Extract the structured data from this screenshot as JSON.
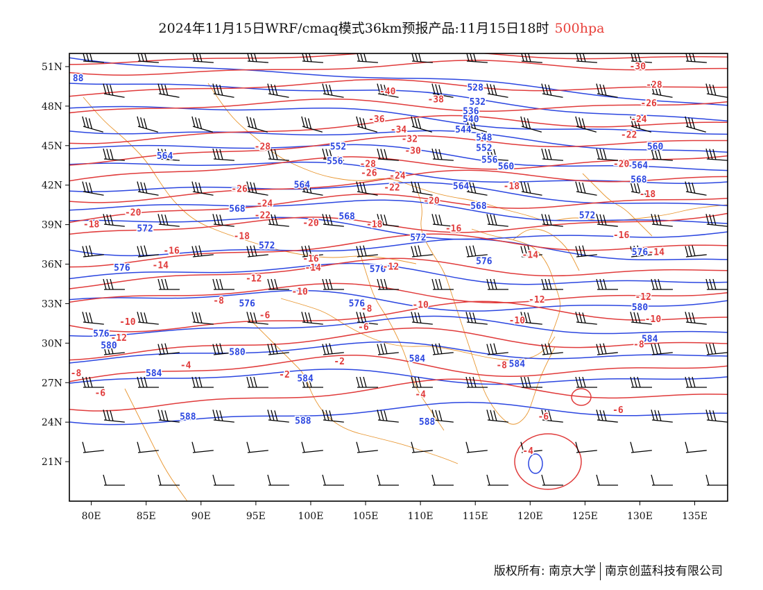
{
  "title": {
    "main": "2024年11月15日WRF/cmaq模式36km预报产品:11月15日18时",
    "level": "500hpa",
    "level_color": "#e8403a"
  },
  "credit": {
    "left": "版权所有: 南京大学",
    "right": "南京创蓝科技有限公司"
  },
  "map": {
    "lon_range": [
      78,
      138
    ],
    "lat_range": [
      18,
      52
    ],
    "x_ticks": [
      "80E",
      "85E",
      "90E",
      "95E",
      "100E",
      "105E",
      "110E",
      "115E",
      "120E",
      "125E",
      "130E",
      "135E"
    ],
    "y_ticks": [
      "51N",
      "48N",
      "45N",
      "42N",
      "39N",
      "36N",
      "33N",
      "30N",
      "27N",
      "24N",
      "21N"
    ],
    "colors": {
      "height": "#2b46e0",
      "temperature": "#e03a3a",
      "boundary": "#e8952e",
      "wind": "#000000"
    }
  },
  "height_labels": [
    {
      "v": "528",
      "lon": 115.0,
      "lat": 49.4
    },
    {
      "v": "532",
      "lon": 115.2,
      "lat": 48.3
    },
    {
      "v": "536",
      "lon": 114.6,
      "lat": 47.6
    },
    {
      "v": "540",
      "lon": 114.6,
      "lat": 47.0
    },
    {
      "v": "544",
      "lon": 113.9,
      "lat": 46.2
    },
    {
      "v": "548",
      "lon": 115.8,
      "lat": 45.6
    },
    {
      "v": "552",
      "lon": 102.5,
      "lat": 44.9
    },
    {
      "v": "552",
      "lon": 115.8,
      "lat": 44.8
    },
    {
      "v": "556",
      "lon": 102.2,
      "lat": 43.8
    },
    {
      "v": "556",
      "lon": 116.3,
      "lat": 43.9
    },
    {
      "v": "560",
      "lon": 117.8,
      "lat": 43.4
    },
    {
      "v": "560",
      "lon": 131.4,
      "lat": 44.9
    },
    {
      "v": "564",
      "lon": 86.7,
      "lat": 44.2
    },
    {
      "v": "564",
      "lon": 130.0,
      "lat": 43.5
    },
    {
      "v": "564",
      "lon": 99.2,
      "lat": 42.0
    },
    {
      "v": "564",
      "lon": 113.7,
      "lat": 41.9
    },
    {
      "v": "568",
      "lon": 129.9,
      "lat": 42.4
    },
    {
      "v": "568",
      "lon": 93.3,
      "lat": 40.2
    },
    {
      "v": "568",
      "lon": 115.3,
      "lat": 40.4
    },
    {
      "v": "568",
      "lon": 103.3,
      "lat": 39.6
    },
    {
      "v": "572",
      "lon": 125.2,
      "lat": 39.7
    },
    {
      "v": "572",
      "lon": 84.9,
      "lat": 38.7
    },
    {
      "v": "572",
      "lon": 109.8,
      "lat": 38.0
    },
    {
      "v": "572",
      "lon": 96.0,
      "lat": 37.4
    },
    {
      "v": "576",
      "lon": 130.0,
      "lat": 36.9
    },
    {
      "v": "576",
      "lon": 115.8,
      "lat": 36.2
    },
    {
      "v": "576",
      "lon": 82.8,
      "lat": 35.7
    },
    {
      "v": "576",
      "lon": 106.1,
      "lat": 35.6
    },
    {
      "v": "576",
      "lon": 94.2,
      "lat": 33.0
    },
    {
      "v": "576",
      "lon": 80.9,
      "lat": 30.7
    },
    {
      "v": "576",
      "lon": 104.2,
      "lat": 33.0
    },
    {
      "v": "580",
      "lon": 130.0,
      "lat": 32.7
    },
    {
      "v": "580",
      "lon": 81.6,
      "lat": 29.8
    },
    {
      "v": "580",
      "lon": 93.3,
      "lat": 29.3
    },
    {
      "v": "584",
      "lon": 130.9,
      "lat": 30.3
    },
    {
      "v": "584",
      "lon": 109.7,
      "lat": 28.8
    },
    {
      "v": "584",
      "lon": 118.8,
      "lat": 28.4
    },
    {
      "v": "584",
      "lon": 85.7,
      "lat": 27.7
    },
    {
      "v": "584",
      "lon": 99.5,
      "lat": 27.3
    },
    {
      "v": "588",
      "lon": 88.8,
      "lat": 24.4
    },
    {
      "v": "588",
      "lon": 99.3,
      "lat": 24.1
    },
    {
      "v": "588",
      "lon": 110.6,
      "lat": 24.0
    },
    {
      "v": "88",
      "lon": 78.8,
      "lat": 50.1
    }
  ],
  "temp_labels": [
    {
      "v": "-30",
      "lon": 129.8,
      "lat": 51.0
    },
    {
      "v": "-28",
      "lon": 131.3,
      "lat": 49.6
    },
    {
      "v": "-26",
      "lon": 130.8,
      "lat": 48.2
    },
    {
      "v": "-24",
      "lon": 129.9,
      "lat": 47.0
    },
    {
      "v": "-22",
      "lon": 129.0,
      "lat": 45.8
    },
    {
      "v": "-20",
      "lon": 128.3,
      "lat": 43.6
    },
    {
      "v": "-18",
      "lon": 130.7,
      "lat": 41.3
    },
    {
      "v": "-16",
      "lon": 128.3,
      "lat": 38.2
    },
    {
      "v": "-14",
      "lon": 131.5,
      "lat": 36.9
    },
    {
      "v": "-12",
      "lon": 130.3,
      "lat": 33.5
    },
    {
      "v": "-10",
      "lon": 131.2,
      "lat": 31.8
    },
    {
      "v": "-8",
      "lon": 129.9,
      "lat": 29.9
    },
    {
      "v": "-6",
      "lon": 128.0,
      "lat": 24.9
    },
    {
      "v": "-40",
      "lon": 107.0,
      "lat": 49.1
    },
    {
      "v": "-38",
      "lon": 111.4,
      "lat": 48.5
    },
    {
      "v": "-36",
      "lon": 106.0,
      "lat": 47.0
    },
    {
      "v": "-34",
      "lon": 108.0,
      "lat": 46.2
    },
    {
      "v": "-32",
      "lon": 109.0,
      "lat": 45.5
    },
    {
      "v": "-30",
      "lon": 109.3,
      "lat": 44.6
    },
    {
      "v": "-28",
      "lon": 95.6,
      "lat": 44.9
    },
    {
      "v": "-28",
      "lon": 105.2,
      "lat": 43.6
    },
    {
      "v": "-26",
      "lon": 105.3,
      "lat": 42.9
    },
    {
      "v": "-24",
      "lon": 107.9,
      "lat": 42.7
    },
    {
      "v": "-22",
      "lon": 107.4,
      "lat": 41.8
    },
    {
      "v": "-26",
      "lon": 93.5,
      "lat": 41.7
    },
    {
      "v": "-24",
      "lon": 95.8,
      "lat": 40.6
    },
    {
      "v": "-22",
      "lon": 95.6,
      "lat": 39.7
    },
    {
      "v": "-20",
      "lon": 111.0,
      "lat": 40.8
    },
    {
      "v": "-20",
      "lon": 100.0,
      "lat": 39.1
    },
    {
      "v": "-18",
      "lon": 105.8,
      "lat": 39.0
    },
    {
      "v": "-18",
      "lon": 118.3,
      "lat": 41.9
    },
    {
      "v": "-16",
      "lon": 113.0,
      "lat": 38.7
    },
    {
      "v": "-20",
      "lon": 83.8,
      "lat": 39.9
    },
    {
      "v": "-18",
      "lon": 80.0,
      "lat": 39.0
    },
    {
      "v": "-18",
      "lon": 93.7,
      "lat": 38.1
    },
    {
      "v": "-16",
      "lon": 87.3,
      "lat": 37.0
    },
    {
      "v": "-16",
      "lon": 100.0,
      "lat": 36.4
    },
    {
      "v": "-14",
      "lon": 86.3,
      "lat": 35.9
    },
    {
      "v": "-14",
      "lon": 100.2,
      "lat": 35.7
    },
    {
      "v": "-12",
      "lon": 107.3,
      "lat": 35.8
    },
    {
      "v": "-14",
      "lon": 120.0,
      "lat": 36.7
    },
    {
      "v": "-12",
      "lon": 94.8,
      "lat": 34.9
    },
    {
      "v": "-10",
      "lon": 99.0,
      "lat": 33.9
    },
    {
      "v": "-12",
      "lon": 120.6,
      "lat": 33.3
    },
    {
      "v": "-10",
      "lon": 110.0,
      "lat": 32.9
    },
    {
      "v": "-8",
      "lon": 91.6,
      "lat": 33.2
    },
    {
      "v": "-8",
      "lon": 105.1,
      "lat": 32.6
    },
    {
      "v": "-6",
      "lon": 95.8,
      "lat": 32.1
    },
    {
      "v": "-10",
      "lon": 83.3,
      "lat": 31.6
    },
    {
      "v": "-10",
      "lon": 118.8,
      "lat": 31.7
    },
    {
      "v": "-6",
      "lon": 104.8,
      "lat": 31.2
    },
    {
      "v": "-12",
      "lon": 82.5,
      "lat": 30.4
    },
    {
      "v": "-2",
      "lon": 102.6,
      "lat": 28.6
    },
    {
      "v": "-4",
      "lon": 88.6,
      "lat": 28.3
    },
    {
      "v": "-2",
      "lon": 97.6,
      "lat": 27.6
    },
    {
      "v": "-8",
      "lon": 117.4,
      "lat": 28.3
    },
    {
      "v": "-8",
      "lon": 78.6,
      "lat": 27.7
    },
    {
      "v": "-6",
      "lon": 80.8,
      "lat": 26.2
    },
    {
      "v": "-4",
      "lon": 110.0,
      "lat": 26.1
    },
    {
      "v": "-6",
      "lon": 121.2,
      "lat": 24.4
    },
    {
      "v": "-4",
      "lon": 119.8,
      "lat": 21.8
    }
  ]
}
